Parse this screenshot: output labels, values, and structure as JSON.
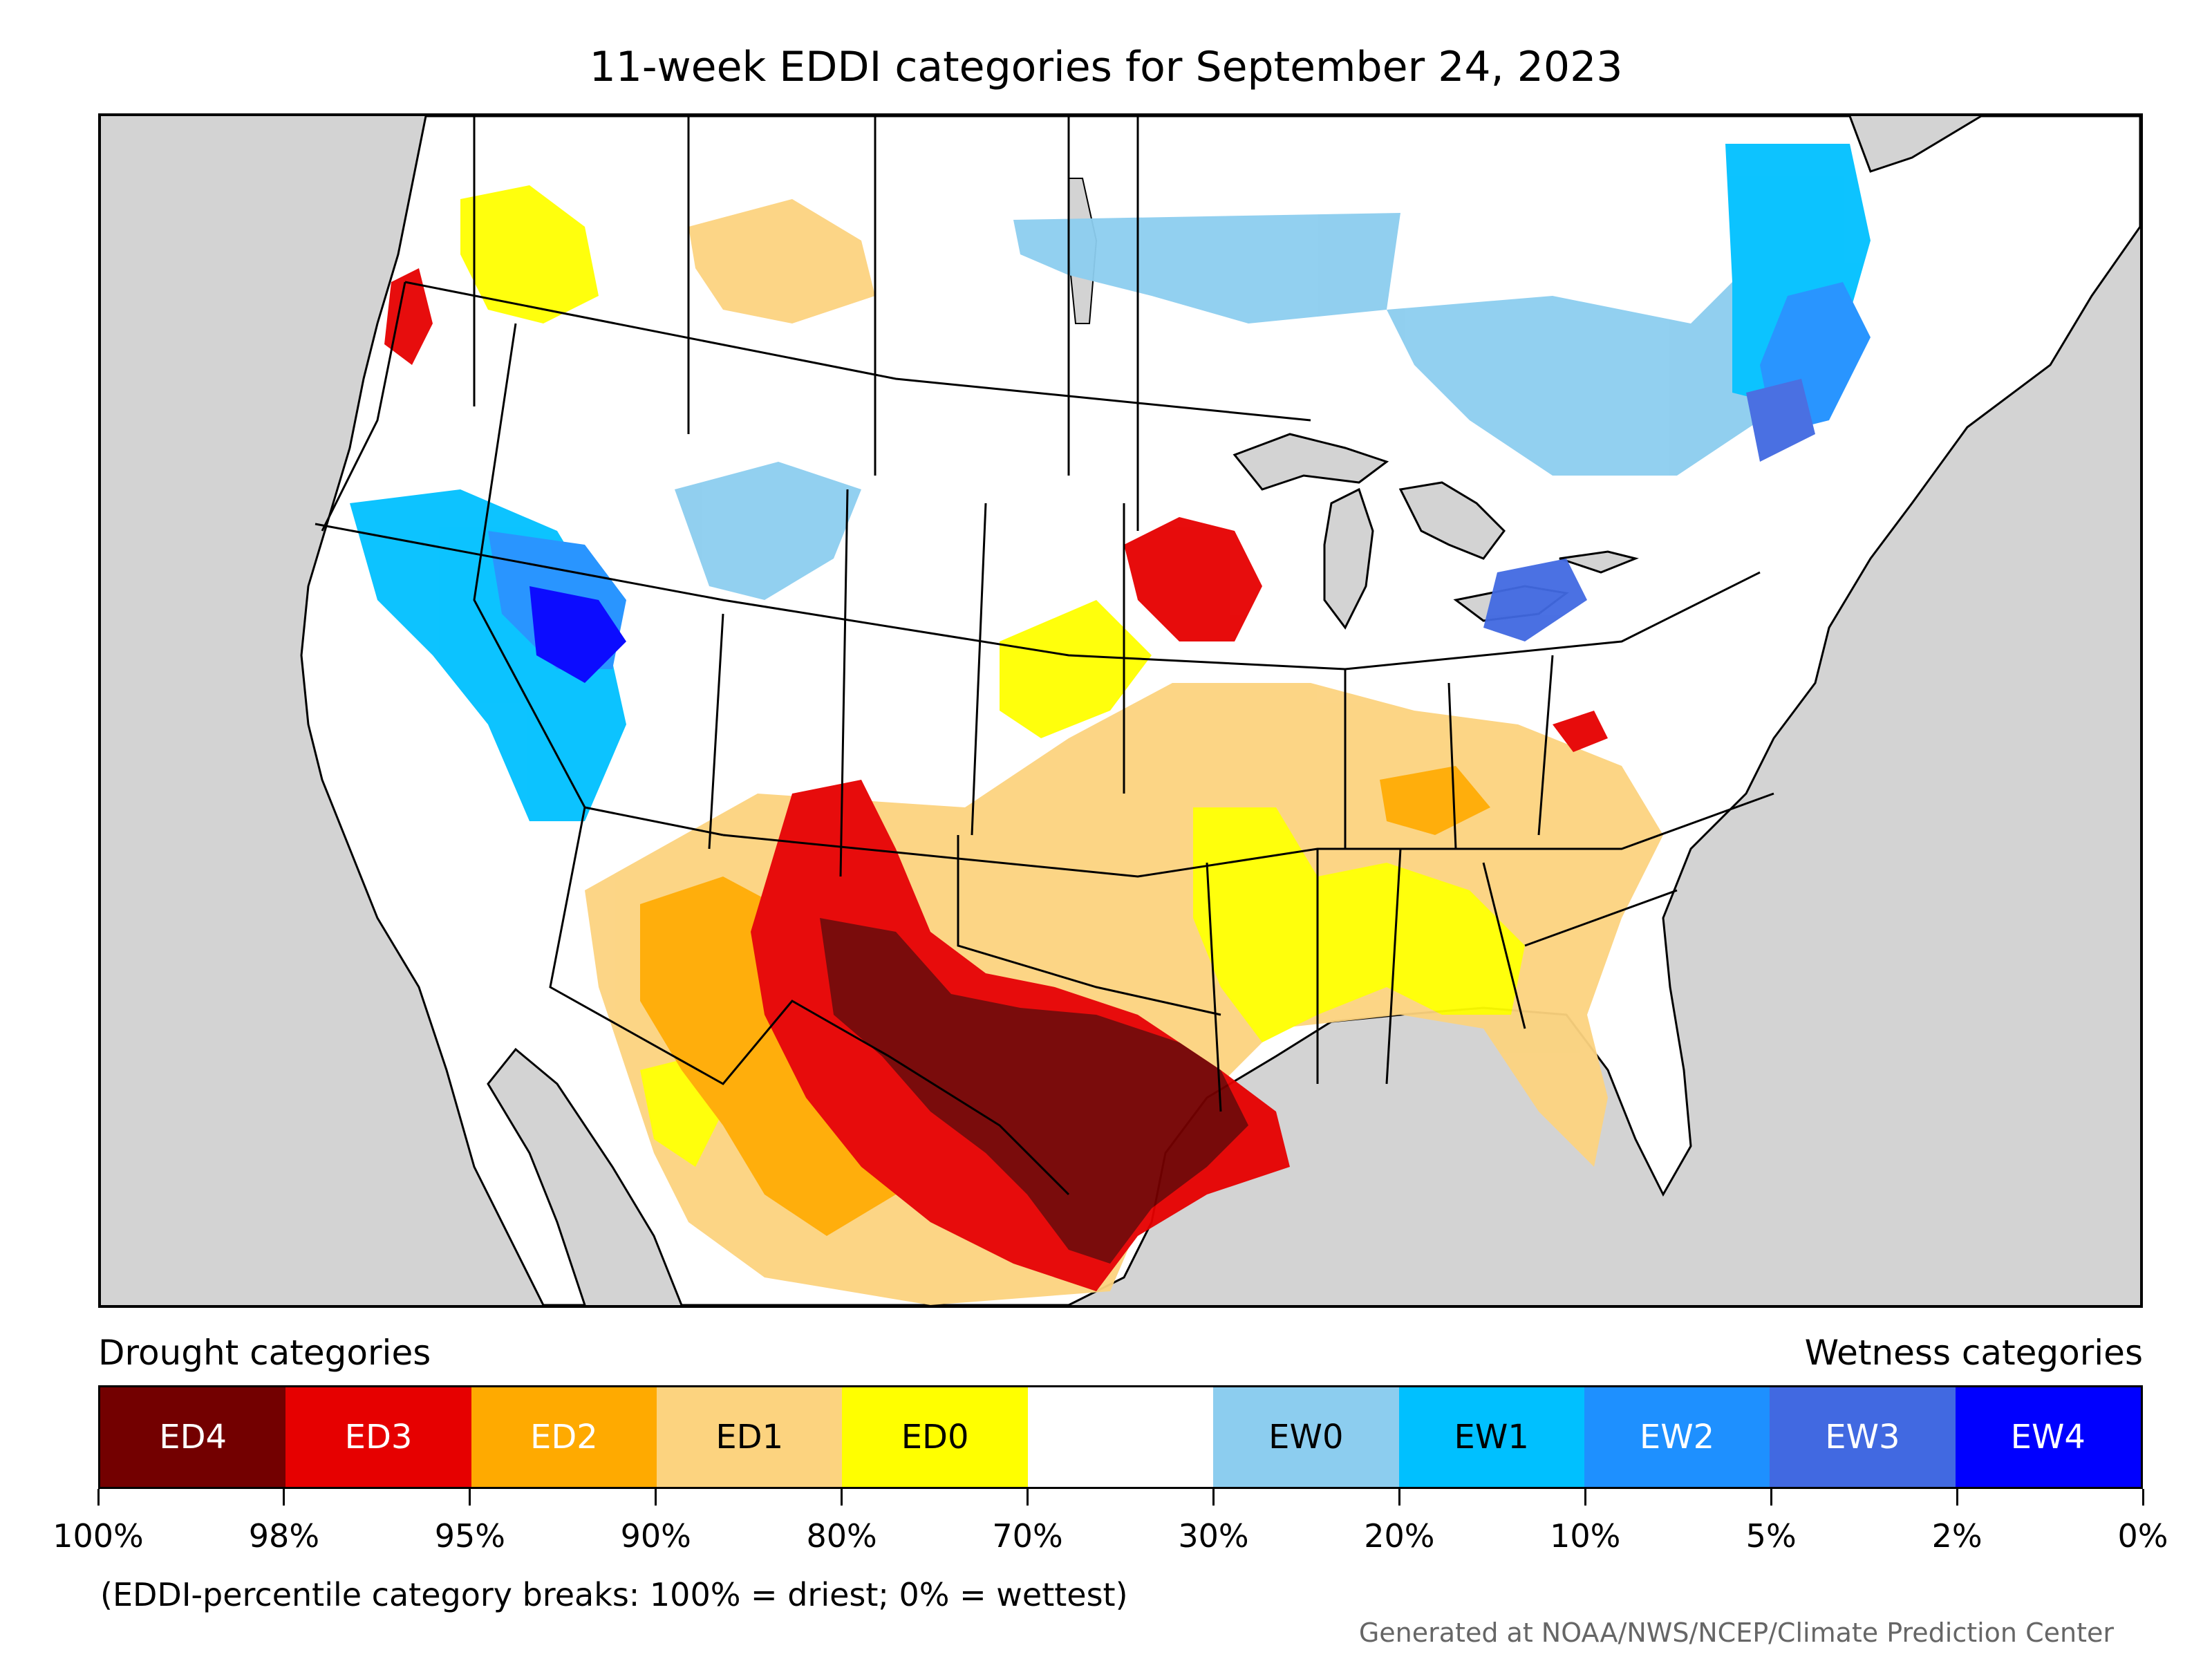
{
  "title": "11-week EDDI categories for September 24, 2023",
  "legend": {
    "left_heading": "Drought categories",
    "right_heading": "Wetness categories",
    "categories": [
      {
        "label": "ED4",
        "color": "#730000",
        "text_color": "#ffffff"
      },
      {
        "label": "ED3",
        "color": "#e60000",
        "text_color": "#ffffff"
      },
      {
        "label": "ED2",
        "color": "#ffaa00",
        "text_color": "#ffffff"
      },
      {
        "label": "ED1",
        "color": "#fcd37f",
        "text_color": "#000000"
      },
      {
        "label": "ED0",
        "color": "#ffff00",
        "text_color": "#000000"
      },
      {
        "label": "",
        "color": "#ffffff",
        "text_color": "#000000"
      },
      {
        "label": "EW0",
        "color": "#8ccdef",
        "text_color": "#000000"
      },
      {
        "label": "EW1",
        "color": "#00c0ff",
        "text_color": "#000000"
      },
      {
        "label": "EW2",
        "color": "#1e90ff",
        "text_color": "#ffffff"
      },
      {
        "label": "EW3",
        "color": "#4169e1",
        "text_color": "#ffffff"
      },
      {
        "label": "EW4",
        "color": "#0000ff",
        "text_color": "#ffffff"
      }
    ],
    "breaks": [
      "100%",
      "98%",
      "95%",
      "90%",
      "80%",
      "70%",
      "30%",
      "20%",
      "10%",
      "5%",
      "2%",
      "0%"
    ]
  },
  "note": "(EDDI-percentile category breaks: 100% = driest; 0% = wettest)",
  "credit": "Generated at NOAA/NWS/NCEP/Climate Prediction Center",
  "map_colors": {
    "ocean": "#d3d3d3",
    "land": "#ffffff",
    "border": "#000000"
  }
}
